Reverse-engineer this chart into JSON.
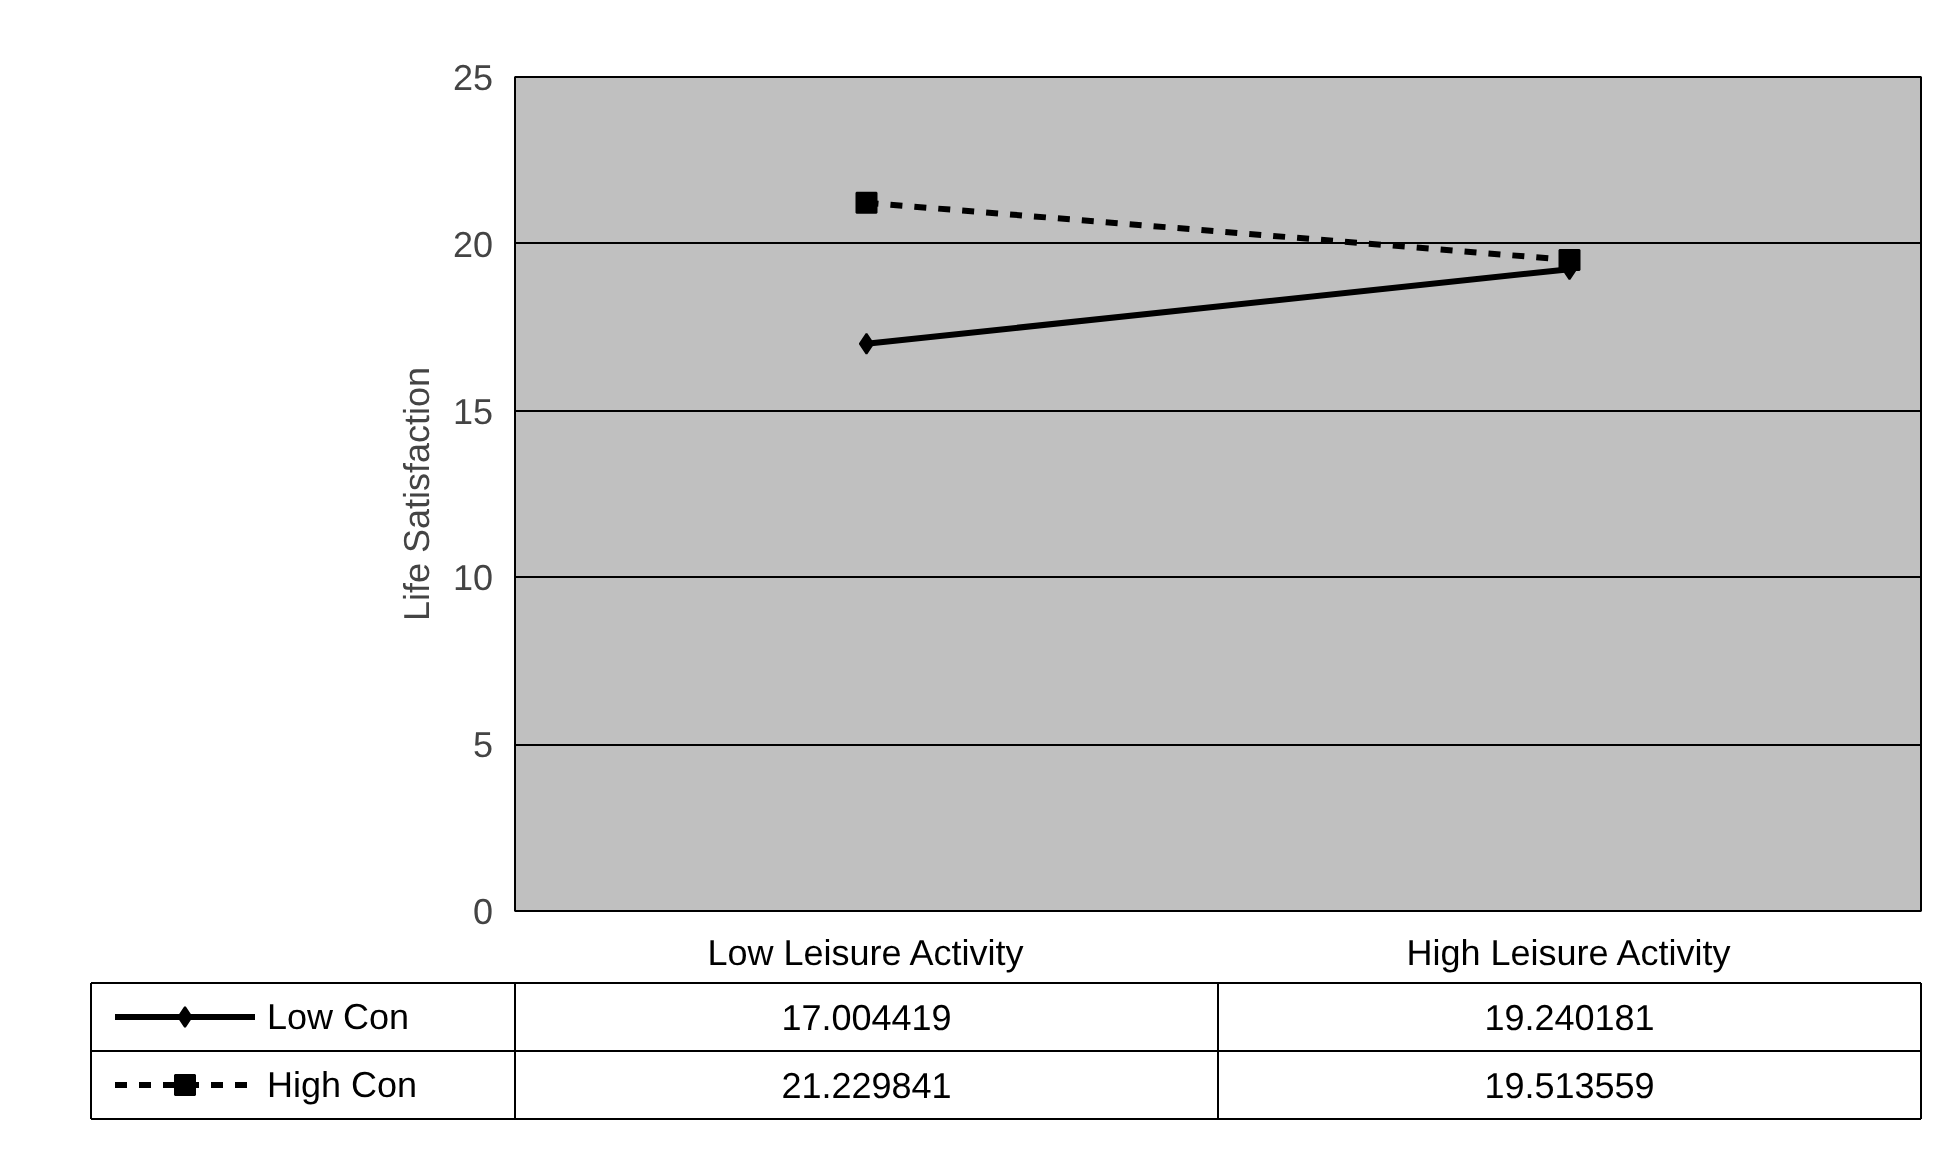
{
  "chart_data": {
    "type": "line",
    "ylabel": "Life Satisfaction",
    "categories": [
      "Low Leisure Activity",
      "High Leisure Activity"
    ],
    "series": [
      {
        "name": "Low Con",
        "color": "#000000",
        "values": [
          17.004419,
          19.240181
        ],
        "marker": "diamond",
        "line_style": "solid"
      },
      {
        "name": "High Con",
        "color": "#000000",
        "values": [
          21.229841,
          19.513559
        ],
        "marker": "square",
        "line_style": "dashed"
      }
    ],
    "ylim": [
      0,
      25
    ],
    "yticks": [
      0,
      5,
      10,
      15,
      20,
      25
    ],
    "grid": "y",
    "legend": "bottom",
    "data_labels": true
  }
}
